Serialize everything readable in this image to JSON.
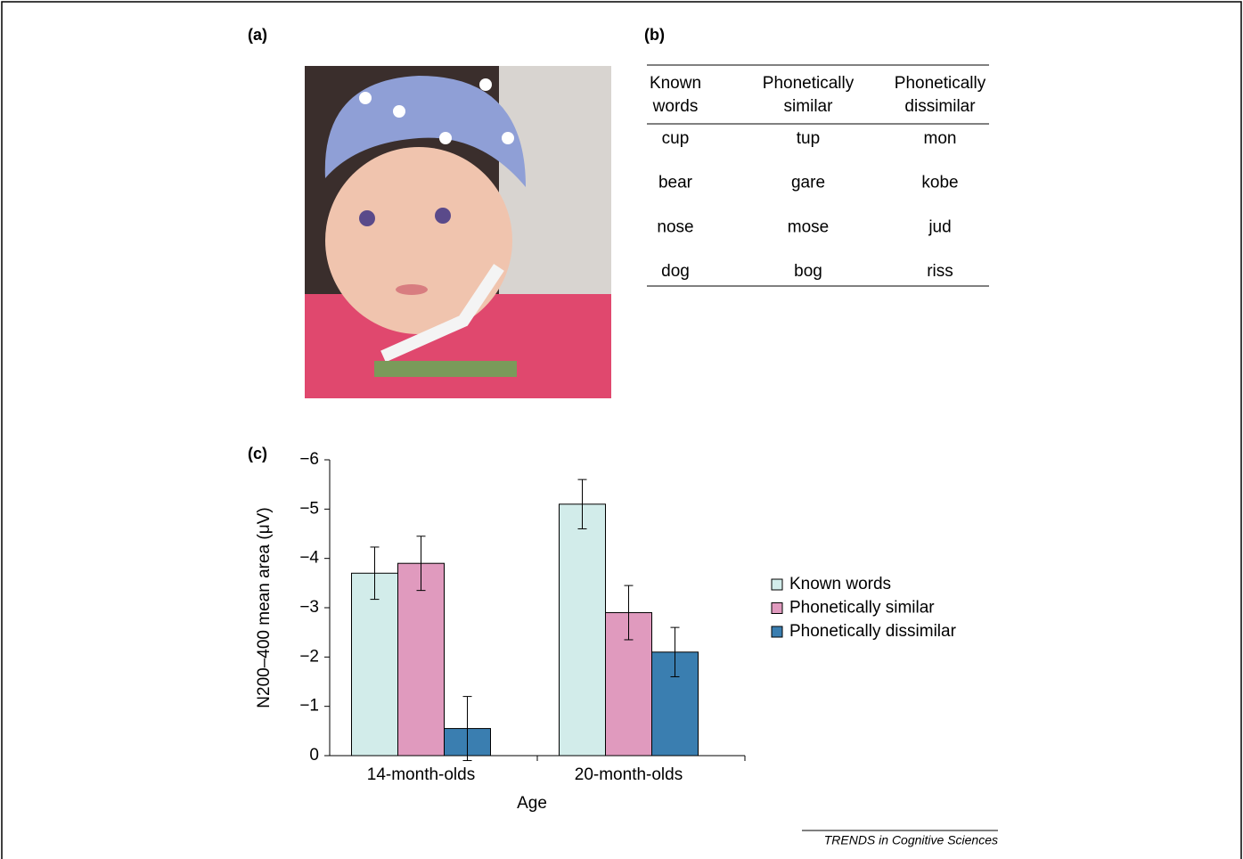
{
  "panels": {
    "a": "(a)",
    "b": "(b)",
    "c": "(c)"
  },
  "table": {
    "header": [
      [
        "Known",
        "words"
      ],
      [
        "Phonetically",
        "similar"
      ],
      [
        "Phonetically",
        "dissimilar"
      ]
    ],
    "rows": [
      [
        "cup",
        "tup",
        "mon"
      ],
      [
        "bear",
        "gare",
        "kobe"
      ],
      [
        "nose",
        "mose",
        "jud"
      ],
      [
        "dog",
        "bog",
        "riss"
      ]
    ]
  },
  "chart_data": {
    "type": "bar",
    "x_label": "Age",
    "y_label": "N200–400 mean area (μV)",
    "categories": [
      "14-month-olds",
      "20-month-olds"
    ],
    "series": [
      {
        "name": "Known words",
        "color": "#d2ecea",
        "values": [
          -3.7,
          -5.1
        ],
        "errors": [
          0.53,
          0.5
        ]
      },
      {
        "name": "Phonetically similar",
        "color": "#e09abe",
        "values": [
          -3.9,
          -2.9
        ],
        "errors": [
          0.55,
          0.55
        ]
      },
      {
        "name": "Phonetically dissimilar",
        "color": "#3a7eb0",
        "values": [
          -0.55,
          -2.1
        ],
        "errors": [
          0.65,
          0.5
        ]
      }
    ],
    "ylim": [
      0,
      -6
    ],
    "yticks": [
      {
        "value": -6,
        "label": "−6"
      },
      {
        "value": -5,
        "label": "−5"
      },
      {
        "value": -4,
        "label": "−4"
      },
      {
        "value": -3,
        "label": "−3"
      },
      {
        "value": -2,
        "label": "−2"
      },
      {
        "value": -1,
        "label": "−1"
      },
      0
    ],
    "legend": "right"
  },
  "footer": "TRENDS in Cognitive Sciences"
}
